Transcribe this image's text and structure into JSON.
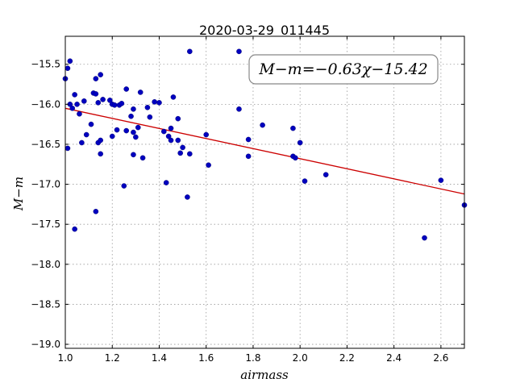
{
  "chart_data": {
    "type": "scatter",
    "title": "2020-03-29_011445",
    "xlabel": "airmass",
    "ylabel": "M−m",
    "xlim": [
      1.0,
      2.7
    ],
    "ylim": [
      -19.05,
      -15.15
    ],
    "xticks": [
      1.0,
      1.2,
      1.4,
      1.6,
      1.8,
      2.0,
      2.2,
      2.4,
      2.6
    ],
    "xtick_labels": [
      "1.0",
      "1.2",
      "1.4",
      "1.6",
      "1.8",
      "2.0",
      "2.2",
      "2.4",
      "2.6"
    ],
    "yticks": [
      -15.5,
      -16.0,
      -16.5,
      -17.0,
      -17.5,
      -18.0,
      -18.5,
      -19.0
    ],
    "ytick_labels": [
      "−15.5",
      "−16.0",
      "−16.5",
      "−17.0",
      "−17.5",
      "−18.0",
      "−18.5",
      "−19.0"
    ],
    "grid": true,
    "annotation": "M−m=−0.63χ−15.42",
    "annotation_position": "top-right",
    "fit": {
      "slope": -0.63,
      "intercept": -15.42,
      "color": "#cc0000"
    },
    "marker_color": "#0000bf",
    "points": [
      [
        1.0,
        -15.68
      ],
      [
        1.01,
        -15.55
      ],
      [
        1.02,
        -15.46
      ],
      [
        1.01,
        -16.55
      ],
      [
        1.02,
        -16.0
      ],
      [
        1.03,
        -16.05
      ],
      [
        1.04,
        -15.88
      ],
      [
        1.05,
        -16.0
      ],
      [
        1.06,
        -16.12
      ],
      [
        1.04,
        -17.56
      ],
      [
        1.07,
        -16.48
      ],
      [
        1.08,
        -15.96
      ],
      [
        1.09,
        -16.38
      ],
      [
        1.11,
        -16.25
      ],
      [
        1.12,
        -15.86
      ],
      [
        1.13,
        -15.87
      ],
      [
        1.13,
        -15.68
      ],
      [
        1.14,
        -15.98
      ],
      [
        1.15,
        -15.63
      ],
      [
        1.14,
        -16.48
      ],
      [
        1.15,
        -16.45
      ],
      [
        1.15,
        -16.62
      ],
      [
        1.16,
        -15.94
      ],
      [
        1.13,
        -17.34
      ],
      [
        1.19,
        -15.95
      ],
      [
        1.2,
        -16.0
      ],
      [
        1.21,
        -16.01
      ],
      [
        1.2,
        -16.4
      ],
      [
        1.22,
        -16.32
      ],
      [
        1.23,
        -16.01
      ],
      [
        1.24,
        -15.99
      ],
      [
        1.26,
        -15.81
      ],
      [
        1.25,
        -17.02
      ],
      [
        1.26,
        -16.33
      ],
      [
        1.28,
        -16.15
      ],
      [
        1.29,
        -16.06
      ],
      [
        1.29,
        -16.35
      ],
      [
        1.3,
        -16.41
      ],
      [
        1.29,
        -16.63
      ],
      [
        1.31,
        -16.29
      ],
      [
        1.32,
        -15.85
      ],
      [
        1.33,
        -16.67
      ],
      [
        1.35,
        -16.04
      ],
      [
        1.36,
        -16.16
      ],
      [
        1.38,
        -15.97
      ],
      [
        1.4,
        -15.98
      ],
      [
        1.42,
        -16.34
      ],
      [
        1.43,
        -16.98
      ],
      [
        1.44,
        -16.4
      ],
      [
        1.45,
        -16.3
      ],
      [
        1.45,
        -16.45
      ],
      [
        1.46,
        -15.91
      ],
      [
        1.48,
        -16.45
      ],
      [
        1.48,
        -16.18
      ],
      [
        1.49,
        -16.61
      ],
      [
        1.5,
        -16.54
      ],
      [
        1.52,
        -17.16
      ],
      [
        1.53,
        -15.34
      ],
      [
        1.53,
        -16.62
      ],
      [
        1.6,
        -16.38
      ],
      [
        1.61,
        -16.76
      ],
      [
        1.74,
        -15.34
      ],
      [
        1.74,
        -16.06
      ],
      [
        1.78,
        -16.65
      ],
      [
        1.78,
        -16.44
      ],
      [
        1.84,
        -16.26
      ],
      [
        1.97,
        -16.3
      ],
      [
        1.97,
        -16.65
      ],
      [
        1.98,
        -16.67
      ],
      [
        2.0,
        -16.48
      ],
      [
        2.02,
        -16.96
      ],
      [
        2.11,
        -16.88
      ],
      [
        2.53,
        -17.67
      ],
      [
        2.6,
        -16.95
      ],
      [
        2.7,
        -17.26
      ]
    ]
  }
}
